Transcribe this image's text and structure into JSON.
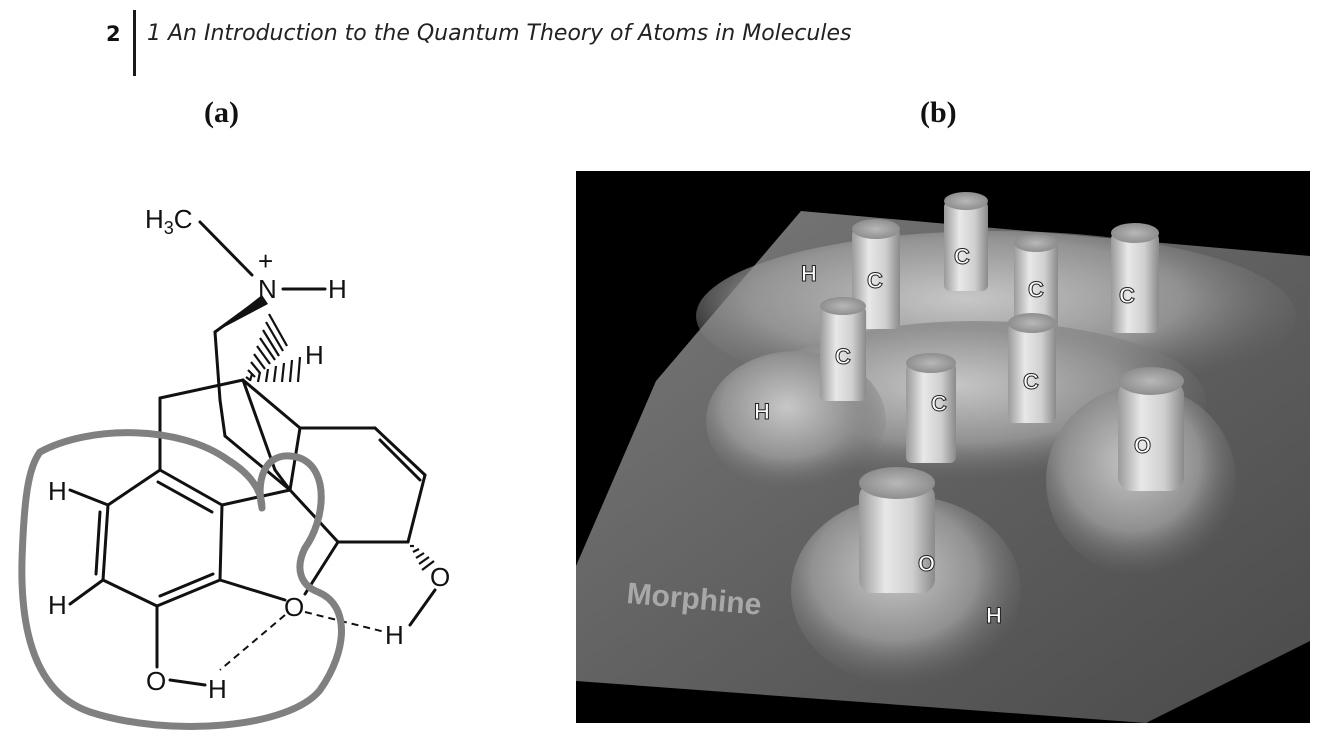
{
  "header": {
    "page_number": "2",
    "running_title": "1 An Introduction to the Quantum Theory of Atoms in Molecules"
  },
  "figure": {
    "panel_a": {
      "label": "(a)",
      "atoms": {
        "methyl": "H3C",
        "charge": "+",
        "nitrogen": "N",
        "h_on_n": "H",
        "h_bridge": "H",
        "h_ring_upper": "H",
        "h_ring_lower": "H",
        "o_phenol": "O",
        "h_phenol": "H",
        "o_ether": "O",
        "o_alcohol": "O",
        "h_alcohol": "H"
      }
    },
    "panel_b": {
      "label": "(b)",
      "molecule_name": "Morphine",
      "peak_labels": {
        "c1": "C",
        "c2": "C",
        "c3": "C",
        "c4": "C",
        "c5": "C",
        "c6": "C",
        "c7": "C",
        "h1": "H",
        "h2": "H",
        "h3": "H",
        "o1": "O",
        "o2": "O"
      }
    }
  }
}
